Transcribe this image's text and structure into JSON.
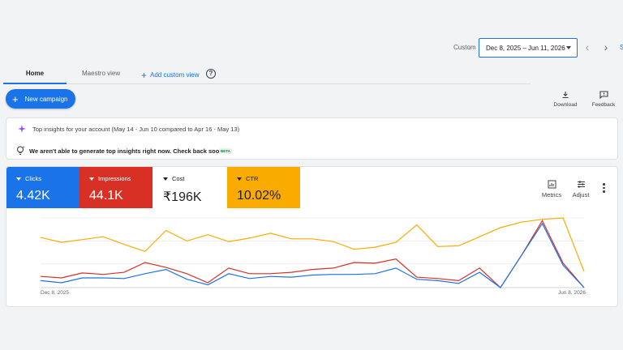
{
  "date_range": {
    "label": "Custom",
    "value": "Dec 8, 2025 – Jun 11, 2026",
    "truncated_link": "S"
  },
  "tabs": [
    {
      "label": "Home"
    },
    {
      "label": "Maestro view"
    },
    {
      "label": "Add custom view"
    }
  ],
  "actions": {
    "new_campaign": "New campaign",
    "download": "Download",
    "feedback": "Feedback"
  },
  "insights": {
    "title": "Top insights for your account (May 14 - Jun 10 compared to Apr 16 - May 13)",
    "message": "We aren't able to generate top insights right now. Check back soon.",
    "badge": "BETA"
  },
  "metric_tiles": [
    {
      "name": "Clicks",
      "value": "4.42K",
      "color": "#1a73e8"
    },
    {
      "name": "Impressions",
      "value": "44.1K",
      "color": "#d93025"
    },
    {
      "name": "Cost",
      "value": "₹196K",
      "color": "#ffffff"
    },
    {
      "name": "CTR",
      "value": "10.02%",
      "color": "#f9ab00"
    }
  ],
  "chart_tools": {
    "metrics": "Metrics",
    "adjust": "Adjust"
  },
  "chart_data": {
    "type": "line",
    "x_start_label": "Dec 8, 2025",
    "x_end_label": "Jun 8, 2026",
    "ylim": [
      0,
      1
    ],
    "grid": true,
    "series": [
      {
        "name": "CTR",
        "color": "#f9ab00",
        "values": [
          0.72,
          0.65,
          0.69,
          0.73,
          0.62,
          0.52,
          0.82,
          0.67,
          0.76,
          0.66,
          0.71,
          0.78,
          0.7,
          0.7,
          0.66,
          0.55,
          0.58,
          0.65,
          0.9,
          0.59,
          0.6,
          0.73,
          0.86,
          0.94,
          0.98,
          1.0,
          0.23
        ]
      },
      {
        "name": "Impressions",
        "color": "#d93025",
        "values": [
          0.16,
          0.14,
          0.21,
          0.19,
          0.22,
          0.36,
          0.29,
          0.2,
          0.07,
          0.28,
          0.2,
          0.2,
          0.22,
          0.26,
          0.28,
          0.36,
          0.35,
          0.41,
          0.15,
          0.13,
          0.1,
          0.28,
          0.0,
          0.46,
          0.96,
          0.35,
          0.0
        ]
      },
      {
        "name": "Clicks",
        "color": "#1a73e8",
        "values": [
          0.1,
          0.07,
          0.14,
          0.14,
          0.13,
          0.2,
          0.26,
          0.12,
          0.04,
          0.2,
          0.13,
          0.16,
          0.15,
          0.18,
          0.19,
          0.19,
          0.2,
          0.28,
          0.12,
          0.1,
          0.06,
          0.22,
          0.0,
          0.46,
          0.92,
          0.32,
          0.0
        ]
      }
    ]
  }
}
